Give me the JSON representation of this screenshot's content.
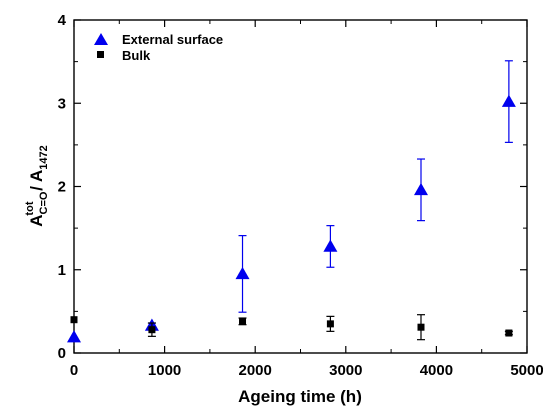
{
  "chart_data": {
    "type": "scatter",
    "title": "",
    "xlabel": "Ageing time (h)",
    "ylabel": {
      "main1": "A",
      "sup1": "tot",
      "sub1": "C=O",
      "sep": " / ",
      "main2": "A",
      "sub2": "1472"
    },
    "xlim": [
      0,
      5000
    ],
    "ylim": [
      0,
      4
    ],
    "xticks": [
      0,
      1000,
      2000,
      3000,
      4000,
      5000
    ],
    "yticks": [
      0,
      1,
      2,
      3,
      4
    ],
    "legend_position": "top-left",
    "series": [
      {
        "name": "External surface",
        "marker": "triangle",
        "color": "#0000ee",
        "points": [
          {
            "x": 0,
            "y": 0.19,
            "err": 0
          },
          {
            "x": 860,
            "y": 0.33,
            "err": 0.03
          },
          {
            "x": 1860,
            "y": 0.95,
            "err": 0.46
          },
          {
            "x": 2830,
            "y": 1.28,
            "err": 0.25
          },
          {
            "x": 3830,
            "y": 1.96,
            "err": 0.37
          },
          {
            "x": 4800,
            "y": 3.02,
            "err": 0.49
          }
        ]
      },
      {
        "name": "Bulk",
        "marker": "square",
        "color": "#000000",
        "points": [
          {
            "x": 0,
            "y": 0.4,
            "err": 0
          },
          {
            "x": 860,
            "y": 0.28,
            "err": 0.08
          },
          {
            "x": 1860,
            "y": 0.38,
            "err": 0.04
          },
          {
            "x": 2830,
            "y": 0.35,
            "err": 0.09
          },
          {
            "x": 3830,
            "y": 0.31,
            "err": 0.15
          },
          {
            "x": 4800,
            "y": 0.24,
            "err": 0.02
          }
        ]
      }
    ]
  }
}
